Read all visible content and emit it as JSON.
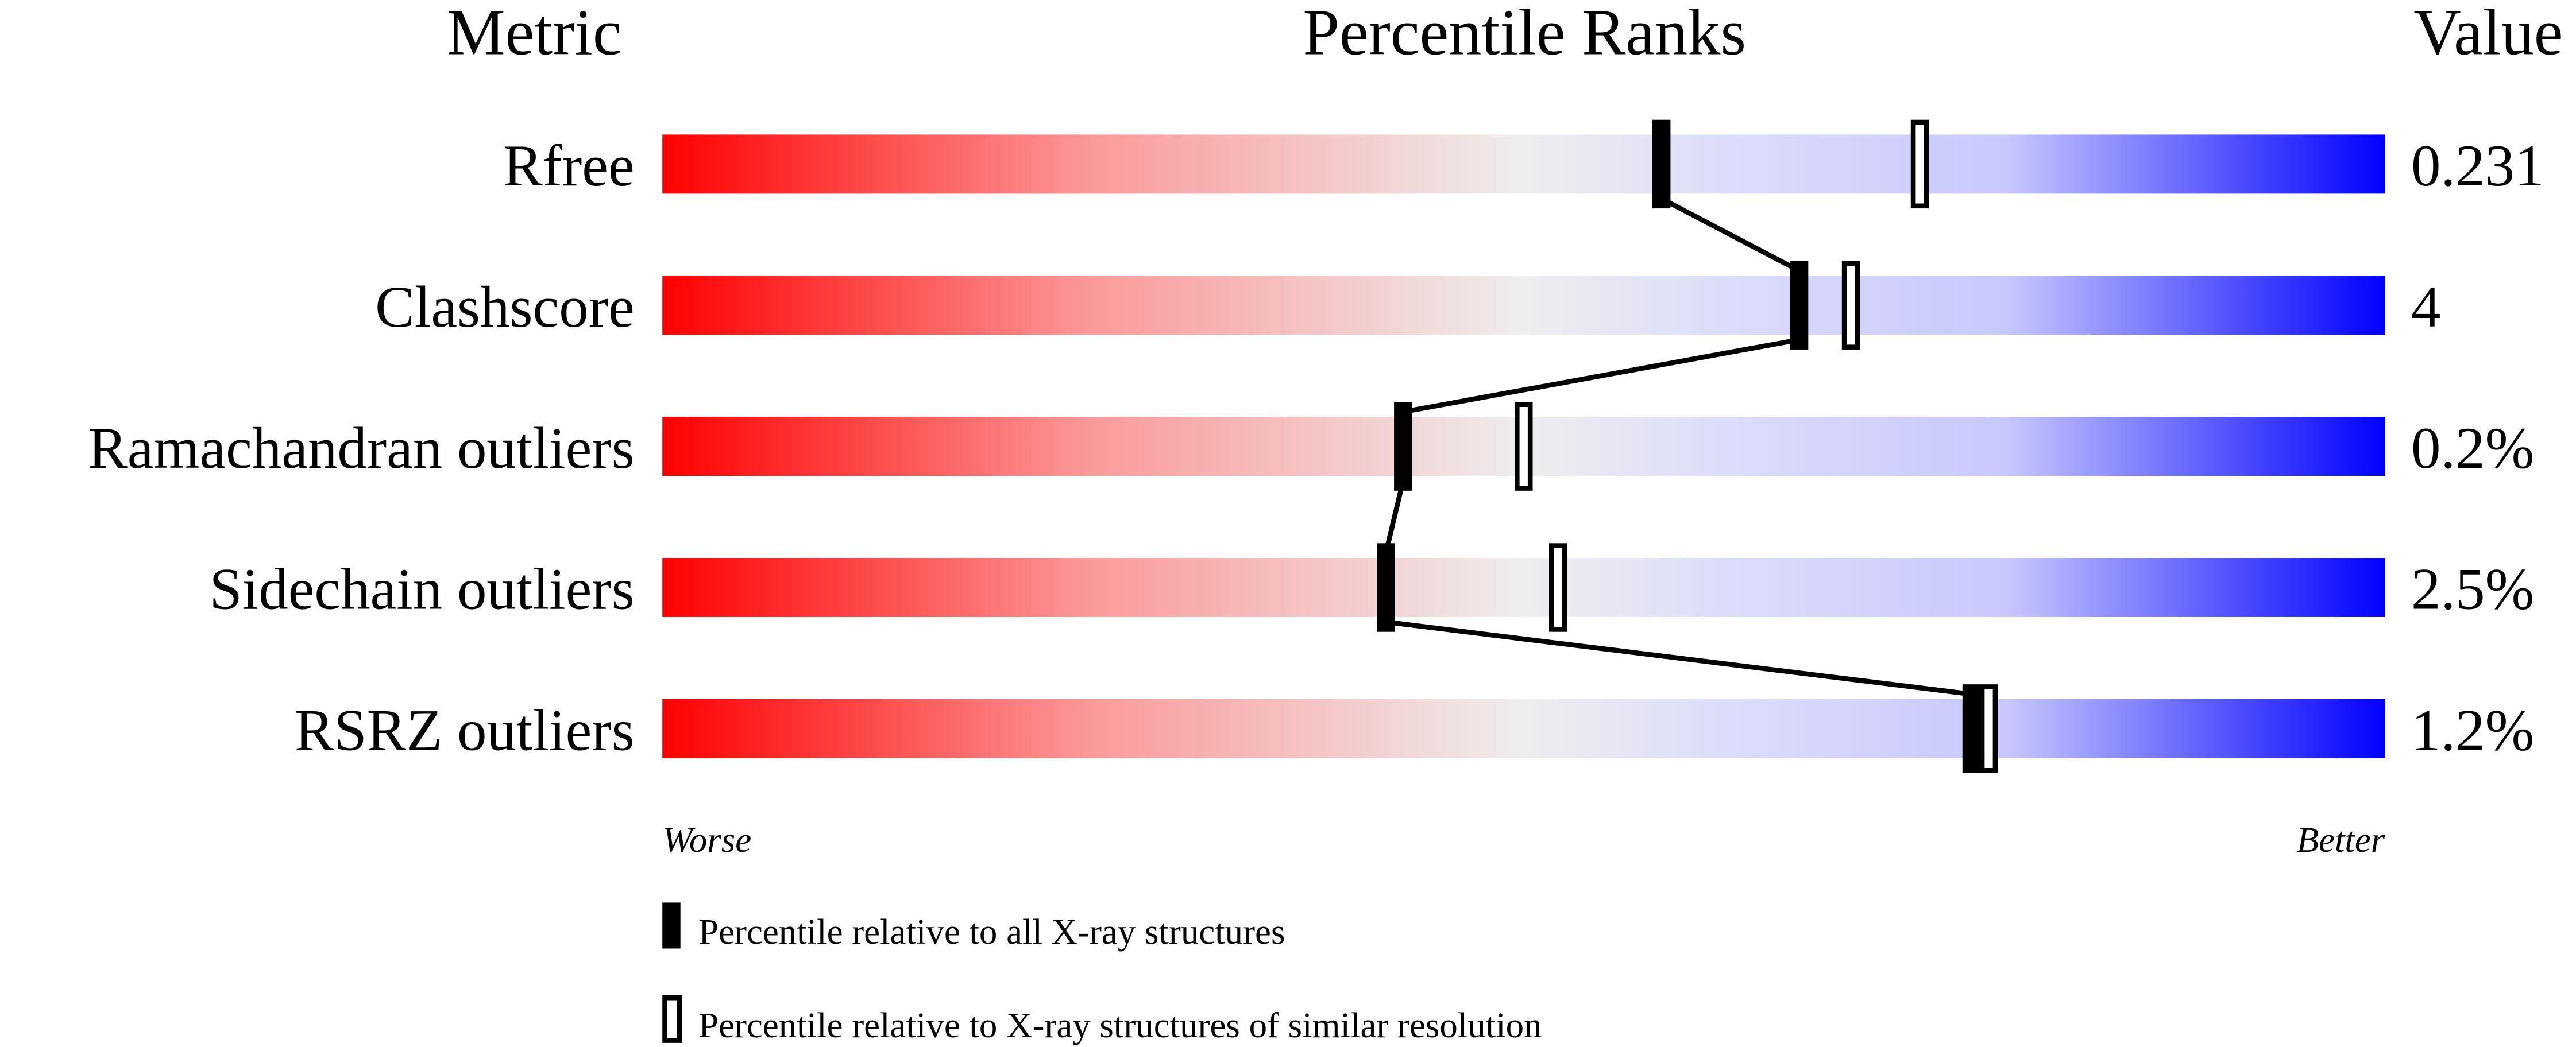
{
  "chart_data": {
    "type": "bar",
    "headers": {
      "metric": "Metric",
      "ranks": "Percentile Ranks",
      "value": "Value"
    },
    "axis": {
      "left": "Worse",
      "right": "Better",
      "range": [
        0,
        100
      ]
    },
    "metrics": [
      {
        "name": "Rfree",
        "value": "0.231",
        "percentile_all": 58,
        "percentile_similar": 73
      },
      {
        "name": "Clashscore",
        "value": "4",
        "percentile_all": 66,
        "percentile_similar": 69
      },
      {
        "name": "Ramachandran outliers",
        "value": "0.2%",
        "percentile_all": 43,
        "percentile_similar": 50
      },
      {
        "name": "Sidechain outliers",
        "value": "2.5%",
        "percentile_all": 42,
        "percentile_similar": 52
      },
      {
        "name": "RSRZ outliers",
        "value": "1.2%",
        "percentile_all": 76,
        "percentile_similar": 77
      }
    ],
    "legend": {
      "all": "Percentile relative to all X-ray structures",
      "similar": "Percentile relative to X-ray structures of similar resolution"
    },
    "colors": {
      "worse": "#ff0000",
      "middle": "#eeeeee",
      "better": "#0000ff",
      "marker": "#000000"
    }
  }
}
